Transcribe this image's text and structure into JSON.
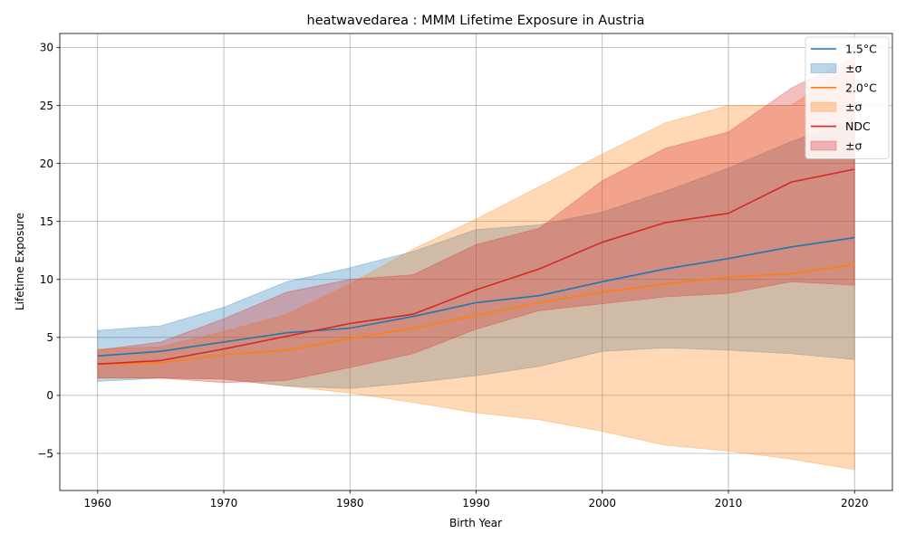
{
  "chart_data": {
    "type": "line",
    "title": "heatwavedarea : MMM Lifetime Exposure in Austria",
    "xlabel": "Birth Year",
    "ylabel": "Lifetime Exposure",
    "xlim": [
      1957,
      2023
    ],
    "ylim": [
      -8.2,
      31.2
    ],
    "xticks": [
      1960,
      1970,
      1980,
      1990,
      2000,
      2010,
      2020
    ],
    "yticks": [
      -5,
      0,
      5,
      10,
      15,
      20,
      25,
      30
    ],
    "grid": true,
    "legend_position": "top-right",
    "x": [
      1960,
      1965,
      1970,
      1975,
      1980,
      1985,
      1990,
      1995,
      2000,
      2005,
      2010,
      2015,
      2020
    ],
    "series": [
      {
        "name": "1.5°C",
        "band_label": "±σ",
        "color": "#1f77b4",
        "band_opacity": 0.3,
        "values": [
          3.4,
          3.8,
          4.6,
          5.4,
          5.8,
          6.8,
          8.0,
          8.6,
          9.8,
          10.9,
          11.8,
          12.8,
          13.6
        ],
        "upper": [
          5.6,
          6.0,
          7.6,
          9.8,
          11.0,
          12.4,
          14.3,
          14.7,
          15.8,
          17.6,
          19.6,
          21.9,
          23.8
        ],
        "lower": [
          1.2,
          1.5,
          1.4,
          0.8,
          0.6,
          1.1,
          1.7,
          2.5,
          3.8,
          4.1,
          3.9,
          3.6,
          3.1
        ]
      },
      {
        "name": "2.0°C",
        "band_label": "±σ",
        "color": "#ff7f0e",
        "band_opacity": 0.3,
        "values": [
          2.7,
          2.8,
          3.5,
          3.9,
          4.9,
          5.8,
          6.9,
          8.0,
          8.9,
          9.6,
          10.2,
          10.5,
          11.3
        ],
        "upper": [
          4.0,
          4.2,
          5.5,
          7.0,
          9.6,
          12.6,
          15.2,
          18.0,
          20.8,
          23.5,
          25.0,
          25.0,
          28.6
        ],
        "lower": [
          1.5,
          1.5,
          1.4,
          0.8,
          0.2,
          -0.6,
          -1.5,
          -2.1,
          -3.1,
          -4.3,
          -4.8,
          -5.5,
          -6.4
        ]
      },
      {
        "name": "NDC",
        "band_label": "±σ",
        "color": "#d62728",
        "band_opacity": 0.3,
        "values": [
          2.7,
          3.0,
          4.0,
          5.1,
          6.2,
          7.0,
          9.1,
          10.9,
          13.2,
          14.9,
          15.7,
          18.4,
          19.5
        ],
        "upper": [
          3.9,
          4.6,
          6.6,
          8.9,
          10.0,
          10.4,
          13.0,
          14.4,
          18.5,
          21.3,
          22.7,
          26.5,
          29.1
        ],
        "lower": [
          1.5,
          1.5,
          1.1,
          1.3,
          2.4,
          3.6,
          5.7,
          7.3,
          7.9,
          8.5,
          8.8,
          9.8,
          9.5
        ]
      }
    ]
  }
}
